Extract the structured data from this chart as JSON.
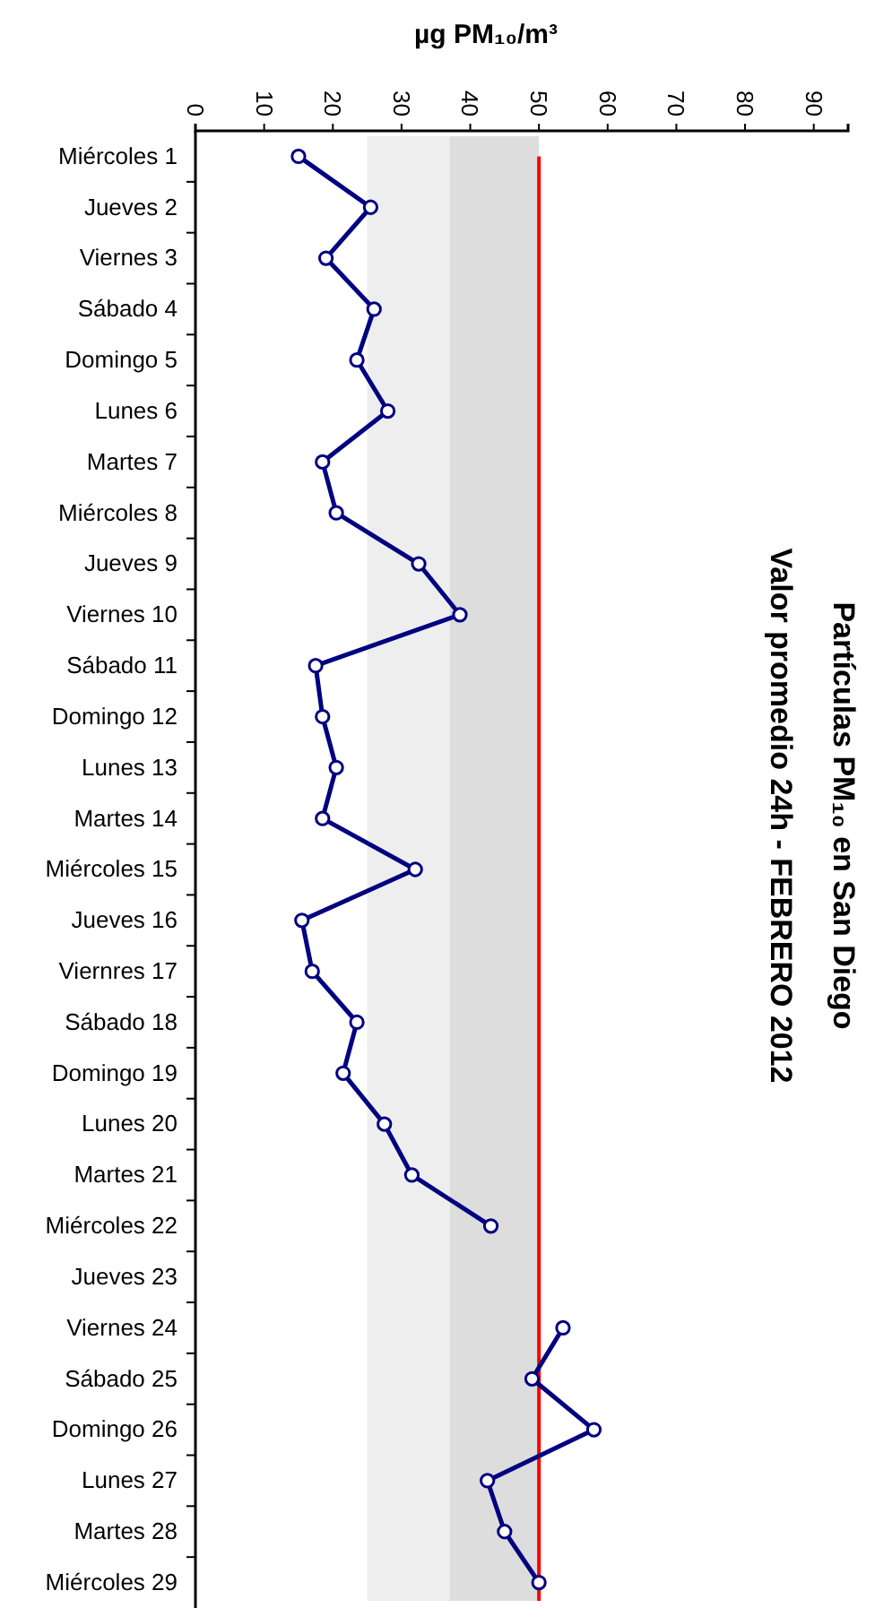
{
  "chart_data": {
    "type": "line",
    "orientation": "horizontal",
    "title": "Partículas PM₁₀ en San Diego",
    "subtitle": "Valor promedio 24h - FEBRERO 2012",
    "xlabel": "µg PM₁₀/m³",
    "categories": [
      "Miércoles 1",
      "Jueves 2",
      "Viernes 3",
      "Sábado 4",
      "Domingo 5",
      "Lunes 6",
      "Martes 7",
      "Miércoles 8",
      "Jueves 9",
      "Viernes 10",
      "Sábado 11",
      "Domingo 12",
      "Lunes 13",
      "Martes 14",
      "Miércoles 15",
      "Jueves 16",
      "Viernres 17",
      "Sábado 18",
      "Domingo 19",
      "Lunes 20",
      "Martes 21",
      "Miércoles 22",
      "Jueves 23",
      "Viernes 24",
      "Sábado 25",
      "Domingo 26",
      "Lunes 27",
      "Martes 28",
      "Miércoles 29"
    ],
    "series": [
      {
        "color": "#000080",
        "values": [
          15,
          25.5,
          19,
          26,
          23.5,
          28,
          18.5,
          20.5,
          32.5,
          38.5,
          17.5,
          18.5,
          20.5,
          18.5,
          32,
          15.5,
          17,
          23.5,
          21.5,
          27.5,
          31.5,
          43,
          null,
          53.5,
          49,
          58,
          42.5,
          45,
          50
        ]
      }
    ],
    "xlim": [
      0,
      95
    ],
    "xticks": [
      0,
      10,
      20,
      30,
      40,
      50,
      60,
      70,
      80,
      90
    ],
    "bands": [
      {
        "axis": "x",
        "from": 25,
        "to": 37,
        "color": "#eeeeee"
      },
      {
        "axis": "x",
        "from": 37,
        "to": 50,
        "color": "#dddddd"
      }
    ],
    "ref_lines": [
      {
        "axis": "x",
        "value": 50,
        "color": "#ff0000"
      }
    ],
    "marker": "circle",
    "line_style": "solid"
  }
}
